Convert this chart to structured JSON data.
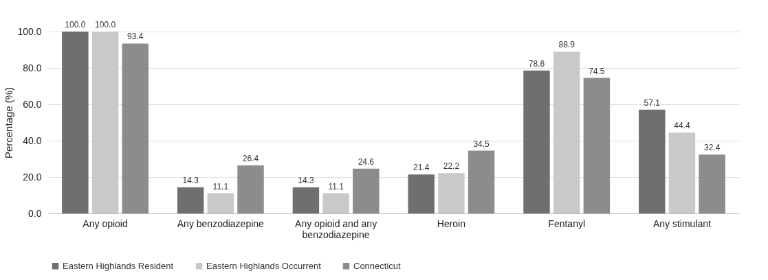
{
  "chart_data": {
    "type": "bar",
    "ylabel": "Percentage (%)",
    "categories": [
      "Any opioid",
      "Any benzodiazepine",
      "Any opioid and any benzodiazepine",
      "Heroin",
      "Fentanyl",
      "Any stimulant"
    ],
    "series": [
      {
        "name": "Eastern Highlands Resident",
        "color": "#6f6f6f",
        "values": [
          100.0,
          14.3,
          14.3,
          21.4,
          78.6,
          57.1
        ],
        "value_labels": [
          "100.0",
          "14.3",
          "14.3",
          "21.4",
          "78.6",
          "57.1"
        ]
      },
      {
        "name": "Eastern Highlands Occurrent",
        "color": "#c9c9c9",
        "values": [
          100.0,
          11.1,
          11.1,
          22.2,
          88.9,
          44.4
        ],
        "value_labels": [
          "100.0",
          "11.1",
          "11.1",
          "22.2",
          "88.9",
          "44.4"
        ]
      },
      {
        "name": "Connecticut",
        "color": "#8c8c8c",
        "values": [
          93.4,
          26.4,
          24.6,
          34.5,
          74.5,
          32.4
        ],
        "value_labels": [
          "93.4",
          "26.4",
          "24.6",
          "34.5",
          "74.5",
          "32.4"
        ]
      }
    ],
    "ylim": [
      0,
      100
    ],
    "yticks": [
      {
        "value": 0,
        "label": "0.0"
      },
      {
        "value": 20,
        "label": "20.0"
      },
      {
        "value": 40,
        "label": "40.0"
      },
      {
        "value": 60,
        "label": "60.0"
      },
      {
        "value": 80,
        "label": "80.0"
      },
      {
        "value": 100,
        "label": "100.0"
      }
    ],
    "grid": "y",
    "legend": "bottom"
  }
}
